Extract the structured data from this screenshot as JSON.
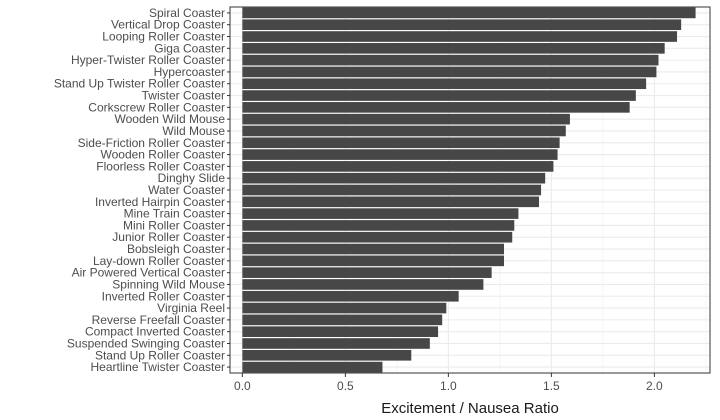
{
  "chart_data": {
    "type": "bar",
    "orientation": "horizontal",
    "xlabel": "Excitement / Nausea Ratio",
    "ylabel": "",
    "title": "",
    "xlim": [
      -0.06,
      2.27
    ],
    "xticks": [
      0.0,
      0.5,
      1.0,
      1.5,
      2.0
    ],
    "xtick_labels": [
      "0.0",
      "0.5",
      "1.0",
      "1.5",
      "2.0"
    ],
    "grid": true,
    "bar_color": "#474747",
    "categories": [
      "Spiral Coaster",
      "Vertical Drop Coaster",
      "Looping Roller Coaster",
      "Giga Coaster",
      "Hyper-Twister Roller Coaster",
      "Hypercoaster",
      "Stand Up Twister Roller Coaster",
      "Twister Coaster",
      "Corkscrew Roller Coaster",
      "Wooden Wild Mouse",
      "Wild Mouse",
      "Side-Friction Roller Coaster",
      "Wooden Roller Coaster",
      "Floorless Roller Coaster",
      "Dinghy Slide",
      "Water Coaster",
      "Inverted Hairpin Coaster",
      "Mine Train Coaster",
      "Mini Roller Coaster",
      "Junior Roller Coaster",
      "Bobsleigh Coaster",
      "Lay-down Roller Coaster",
      "Air Powered Vertical Coaster",
      "Spinning Wild Mouse",
      "Inverted Roller Coaster",
      "Virginia Reel",
      "Reverse Freefall Coaster",
      "Compact Inverted Coaster",
      "Suspended Swinging Coaster",
      "Stand Up Roller Coaster",
      "Heartline Twister Coaster"
    ],
    "values": [
      2.2,
      2.13,
      2.11,
      2.05,
      2.02,
      2.01,
      1.96,
      1.91,
      1.88,
      1.59,
      1.57,
      1.54,
      1.53,
      1.51,
      1.47,
      1.45,
      1.44,
      1.34,
      1.32,
      1.31,
      1.27,
      1.27,
      1.21,
      1.17,
      1.05,
      0.99,
      0.97,
      0.95,
      0.91,
      0.82,
      0.68
    ]
  }
}
